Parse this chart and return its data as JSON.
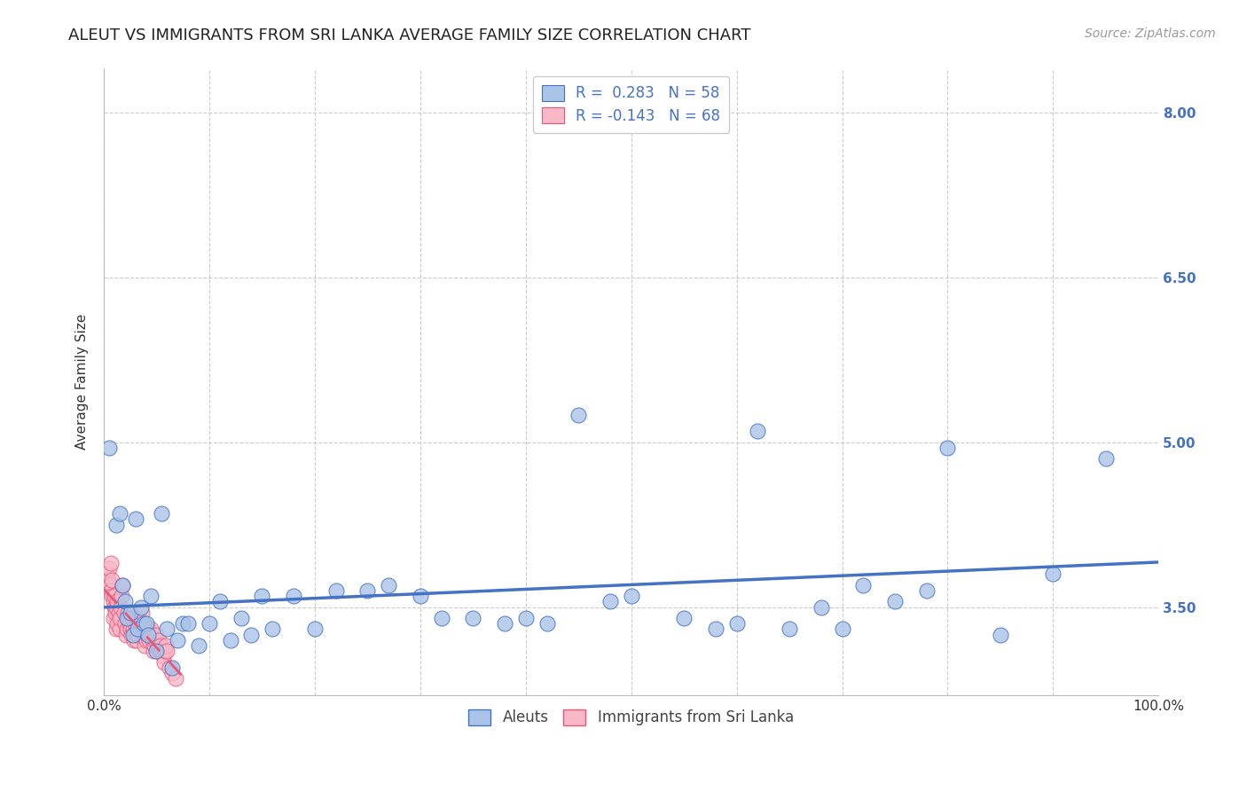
{
  "title": "ALEUT VS IMMIGRANTS FROM SRI LANKA AVERAGE FAMILY SIZE CORRELATION CHART",
  "source": "Source: ZipAtlas.com",
  "ylabel": "Average Family Size",
  "xlim": [
    0.0,
    1.0
  ],
  "ylim": [
    2.7,
    8.4
  ],
  "aleut_color": "#aac4e8",
  "aleut_color_dark": "#4472c4",
  "srilanka_color": "#f9b8c8",
  "srilanka_color_dark": "#e8577a",
  "legend_r_aleut": "0.283",
  "legend_n_aleut": "58",
  "legend_r_srilanka": "-0.143",
  "legend_n_srilanka": "68",
  "aleut_x": [
    0.005,
    0.012,
    0.015,
    0.018,
    0.02,
    0.022,
    0.025,
    0.028,
    0.03,
    0.032,
    0.035,
    0.038,
    0.04,
    0.042,
    0.045,
    0.05,
    0.055,
    0.06,
    0.065,
    0.07,
    0.075,
    0.08,
    0.09,
    0.1,
    0.11,
    0.12,
    0.13,
    0.14,
    0.15,
    0.16,
    0.18,
    0.2,
    0.22,
    0.25,
    0.27,
    0.3,
    0.32,
    0.35,
    0.38,
    0.4,
    0.42,
    0.45,
    0.48,
    0.5,
    0.55,
    0.58,
    0.6,
    0.62,
    0.65,
    0.68,
    0.7,
    0.72,
    0.75,
    0.78,
    0.8,
    0.85,
    0.9,
    0.95
  ],
  "aleut_y": [
    4.95,
    4.25,
    4.35,
    3.7,
    3.55,
    3.4,
    3.45,
    3.25,
    4.3,
    3.3,
    3.5,
    3.35,
    3.35,
    3.25,
    3.6,
    3.1,
    4.35,
    3.3,
    2.95,
    3.2,
    3.35,
    3.35,
    3.15,
    3.35,
    3.55,
    3.2,
    3.4,
    3.25,
    3.6,
    3.3,
    3.6,
    3.3,
    3.65,
    3.65,
    3.7,
    3.6,
    3.4,
    3.4,
    3.35,
    3.4,
    3.35,
    5.25,
    3.55,
    3.6,
    3.4,
    3.3,
    3.35,
    5.1,
    3.3,
    3.5,
    3.3,
    3.7,
    3.55,
    3.65,
    4.95,
    3.25,
    3.8,
    4.85
  ],
  "srilanka_x": [
    0.003,
    0.004,
    0.005,
    0.006,
    0.007,
    0.007,
    0.008,
    0.008,
    0.009,
    0.009,
    0.01,
    0.01,
    0.011,
    0.012,
    0.012,
    0.013,
    0.013,
    0.014,
    0.015,
    0.015,
    0.016,
    0.017,
    0.018,
    0.019,
    0.02,
    0.021,
    0.022,
    0.023,
    0.024,
    0.025,
    0.026,
    0.027,
    0.028,
    0.029,
    0.03,
    0.031,
    0.032,
    0.033,
    0.034,
    0.035,
    0.036,
    0.037,
    0.038,
    0.039,
    0.04,
    0.041,
    0.042,
    0.043,
    0.044,
    0.045,
    0.046,
    0.047,
    0.048,
    0.049,
    0.05,
    0.051,
    0.052,
    0.053,
    0.054,
    0.055,
    0.056,
    0.057,
    0.058,
    0.059,
    0.06,
    0.062,
    0.065,
    0.068
  ],
  "srilanka_y": [
    3.8,
    3.75,
    3.85,
    3.7,
    3.9,
    3.65,
    3.75,
    3.6,
    3.55,
    3.4,
    3.5,
    3.6,
    3.45,
    3.3,
    3.5,
    3.55,
    3.35,
    3.45,
    3.3,
    3.4,
    3.5,
    3.6,
    3.7,
    3.45,
    3.35,
    3.25,
    3.3,
    3.45,
    3.35,
    3.3,
    3.25,
    3.4,
    3.3,
    3.2,
    3.3,
    3.2,
    3.25,
    3.4,
    3.35,
    3.3,
    3.45,
    3.3,
    3.25,
    3.15,
    3.2,
    3.25,
    3.3,
    3.2,
    3.25,
    3.3,
    3.2,
    3.1,
    3.15,
    3.2,
    3.25,
    3.15,
    3.2,
    3.1,
    3.15,
    3.1,
    3.05,
    3.0,
    3.1,
    3.15,
    3.1,
    2.95,
    2.9,
    2.85
  ],
  "background_color": "#ffffff",
  "grid_color": "#cccccc",
  "title_fontsize": 13,
  "source_fontsize": 10,
  "label_fontsize": 11,
  "tick_fontsize": 11,
  "right_yticks": [
    3.5,
    5.0,
    6.5,
    8.0
  ],
  "right_ytick_labels": [
    "3.50",
    "5.00",
    "6.50",
    "8.00"
  ],
  "hgrid_lines": [
    3.5,
    5.0,
    6.5,
    8.0
  ],
  "vgrid_lines": [
    0.0,
    0.1,
    0.2,
    0.3,
    0.4,
    0.5,
    0.6,
    0.7,
    0.8,
    0.9,
    1.0
  ]
}
